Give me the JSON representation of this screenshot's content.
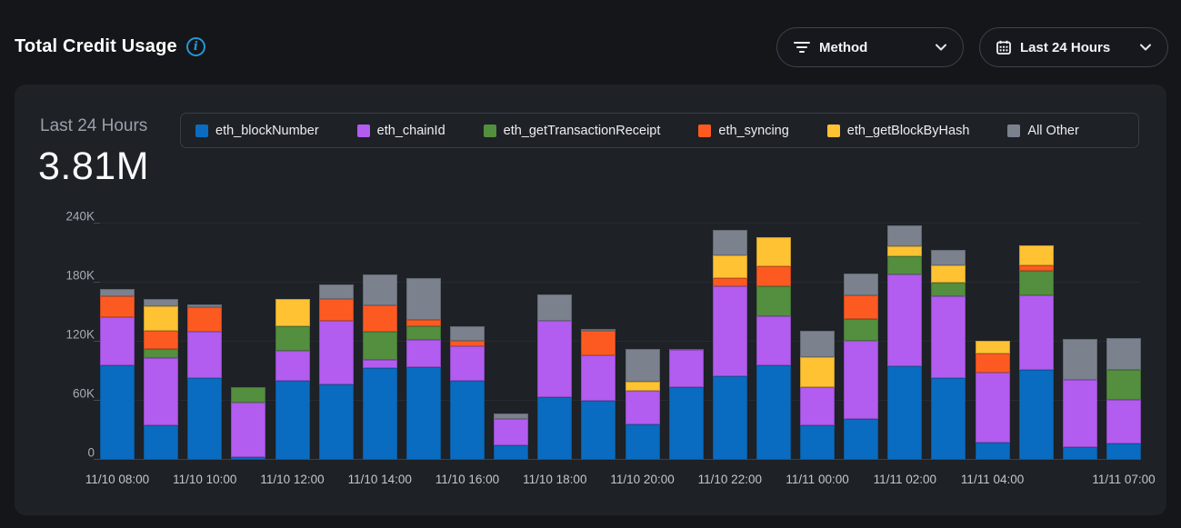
{
  "header": {
    "title": "Total Credit Usage",
    "method_filter": {
      "label": "Method"
    },
    "time_filter": {
      "label": "Last 24 Hours"
    }
  },
  "summary": {
    "period_label": "Last 24 Hours",
    "total": "3.81M"
  },
  "icons": {
    "info": "info-icon",
    "filter": "filter-icon",
    "calendar": "calendar-icon",
    "chevron": "chevron-down-icon"
  },
  "colors": {
    "accent_info": "#2697d8",
    "page_bg": "#141619",
    "card_bg": "#1e2126"
  },
  "chart_data": {
    "type": "bar",
    "stacked": true,
    "title": "Total Credit Usage",
    "xlabel": "",
    "ylabel": "",
    "ylim": [
      0,
      240000
    ],
    "grid": true,
    "legend_position": "top",
    "yticks": [
      0,
      60000,
      120000,
      180000,
      240000
    ],
    "ytick_labels": [
      "0",
      "60K",
      "120K",
      "180K",
      "240K"
    ],
    "categories": [
      "11/10 08:00",
      "11/10 09:00",
      "11/10 10:00",
      "11/10 11:00",
      "11/10 12:00",
      "11/10 13:00",
      "11/10 14:00",
      "11/10 15:00",
      "11/10 16:00",
      "11/10 17:00",
      "11/10 18:00",
      "11/10 19:00",
      "11/10 20:00",
      "11/10 21:00",
      "11/10 22:00",
      "11/10 23:00",
      "11/11 00:00",
      "11/11 01:00",
      "11/11 02:00",
      "11/11 03:00",
      "11/11 04:00",
      "11/11 05:00",
      "11/11 06:00",
      "11/11 07:00"
    ],
    "x_ticks": [
      {
        "index": 0,
        "label": "11/10 08:00"
      },
      {
        "index": 2,
        "label": "11/10 10:00"
      },
      {
        "index": 4,
        "label": "11/10 12:00"
      },
      {
        "index": 6,
        "label": "11/10 14:00"
      },
      {
        "index": 8,
        "label": "11/10 16:00"
      },
      {
        "index": 10,
        "label": "11/10 18:00"
      },
      {
        "index": 12,
        "label": "11/10 20:00"
      },
      {
        "index": 14,
        "label": "11/10 22:00"
      },
      {
        "index": 16,
        "label": "11/11 00:00"
      },
      {
        "index": 18,
        "label": "11/11 02:00"
      },
      {
        "index": 20,
        "label": "11/11 04:00"
      },
      {
        "index": 23,
        "label": "11/11 07:00"
      }
    ],
    "series": [
      {
        "name": "eth_blockNumber",
        "color": "#0a6cc0",
        "values": [
          96000,
          35000,
          83000,
          3000,
          80000,
          77000,
          93000,
          94000,
          80000,
          15000,
          64000,
          60000,
          36000,
          74000,
          85000,
          96000,
          35000,
          42000,
          95000,
          83000,
          18000,
          91000,
          13000,
          17000
        ]
      },
      {
        "name": "eth_chainId",
        "color": "#b35cf0",
        "values": [
          49000,
          68000,
          47000,
          55000,
          31000,
          64000,
          9000,
          28000,
          35000,
          27000,
          77000,
          46000,
          34000,
          38000,
          91000,
          50000,
          39000,
          79000,
          93000,
          83000,
          71000,
          76000,
          68000,
          44000
        ]
      },
      {
        "name": "eth_getTransactionReceipt",
        "color": "#538f3e",
        "values": [
          0,
          10000,
          0,
          16000,
          25000,
          0,
          28000,
          14000,
          0,
          0,
          0,
          0,
          0,
          1000,
          0,
          30000,
          0,
          22000,
          19000,
          14000,
          0,
          25000,
          0,
          30000
        ]
      },
      {
        "name": "eth_syncing",
        "color": "#fd5a22",
        "values": [
          21000,
          18000,
          25000,
          0,
          0,
          22000,
          27000,
          6000,
          6000,
          0,
          0,
          25000,
          0,
          0,
          9000,
          21000,
          0,
          24000,
          0,
          0,
          19000,
          6000,
          0,
          0
        ]
      },
      {
        "name": "eth_getBlockByHash",
        "color": "#fec233",
        "values": [
          0,
          25000,
          0,
          0,
          27000,
          0,
          0,
          0,
          0,
          0,
          0,
          0,
          9000,
          0,
          23000,
          29000,
          30000,
          0,
          10000,
          18000,
          13000,
          20000,
          0,
          0
        ]
      },
      {
        "name": "All Other",
        "color": "#7b828e",
        "values": [
          8000,
          7000,
          3000,
          0,
          0,
          15000,
          31000,
          43000,
          15000,
          5000,
          27000,
          2000,
          34000,
          0,
          26000,
          0,
          27000,
          22000,
          21000,
          15000,
          0,
          0,
          42000,
          33000
        ]
      }
    ]
  }
}
